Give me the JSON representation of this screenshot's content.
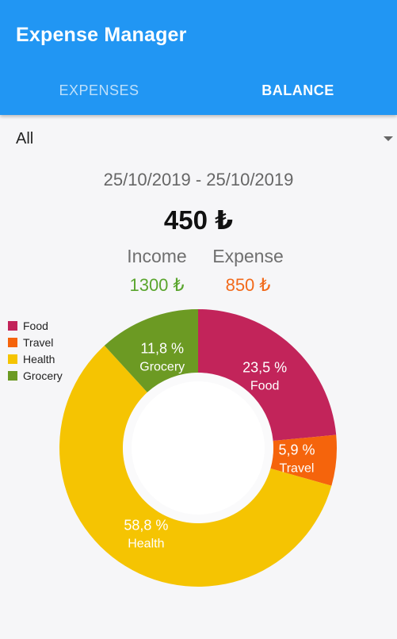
{
  "app": {
    "title": "Expense Manager"
  },
  "tabs": [
    {
      "label": "EXPENSES",
      "active": false
    },
    {
      "label": "BALANCE",
      "active": true
    }
  ],
  "filter": {
    "selected": "All"
  },
  "summary": {
    "date_range": "25/10/2019 - 25/10/2019",
    "balance": "450 ₺",
    "income_label": "Income",
    "income_value": "1300 ₺",
    "expense_label": "Expense",
    "expense_value": "850 ₺"
  },
  "colors": {
    "primary": "#2196f3",
    "income": "#5aa52e",
    "expense": "#f26a1b"
  },
  "icons": {
    "filter_dropdown": "chevron-down-icon"
  },
  "chart_data": {
    "type": "pie",
    "categories": [
      "Food",
      "Travel",
      "Health",
      "Grocery"
    ],
    "values": [
      23.5,
      5.9,
      58.8,
      11.8
    ],
    "value_labels": [
      "23,5 %",
      "5,9 %",
      "58,8 %",
      "11,8 %"
    ],
    "colors": [
      "#c2245a",
      "#f5640c",
      "#f5c402",
      "#6c9a23"
    ],
    "legend": "top-left",
    "hole": true
  }
}
